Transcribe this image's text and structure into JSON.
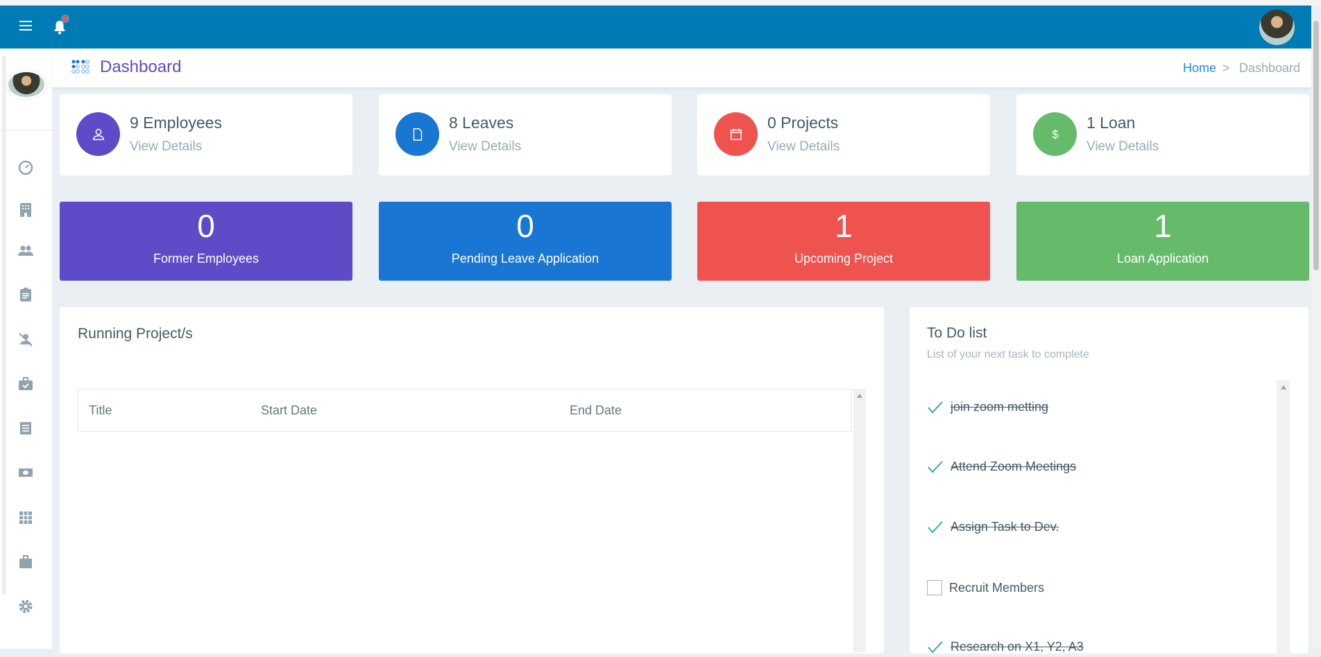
{
  "topbar": {
    "color": "#007bb6",
    "menu_icon": "hamburger-icon",
    "notification_icon": "bell-icon",
    "has_notification": true
  },
  "header": {
    "title": "Dashboard",
    "breadcrumb": {
      "home": "Home",
      "current": "Dashboard"
    }
  },
  "sidebar": {
    "items": [
      "dashboard-icon",
      "building-icon",
      "people-icon",
      "clipboard-icon",
      "person-off-icon",
      "briefcase-check-icon",
      "list-icon",
      "money-icon",
      "grid-icon",
      "briefcase-icon",
      "gear-icon"
    ]
  },
  "stats": [
    {
      "title": "9 Employees",
      "link": "View Details",
      "color": "#5f4bc8",
      "icon": "user-icon"
    },
    {
      "title": "8 Leaves",
      "link": "View Details",
      "color": "#1976d2",
      "icon": "file-icon"
    },
    {
      "title": "0 Projects",
      "link": "View Details",
      "color": "#ef5350",
      "icon": "calendar-icon"
    },
    {
      "title": "1 Loan",
      "link": "View Details",
      "color": "#66bb6a",
      "icon": "dollar-icon"
    }
  ],
  "counters": [
    {
      "value": "0",
      "label": "Former Employees",
      "color": "#5f4bc8"
    },
    {
      "value": "0",
      "label": "Pending Leave Application",
      "color": "#1976d2"
    },
    {
      "value": "1",
      "label": "Upcoming Project",
      "color": "#ef5350"
    },
    {
      "value": "1",
      "label": "Loan Application",
      "color": "#66bb6a"
    }
  ],
  "projects": {
    "title": "Running Project/s",
    "columns": [
      "Title",
      "Start Date",
      "End Date"
    ],
    "rows": []
  },
  "todo": {
    "title": "To Do list",
    "subtitle": "List of your next task to complete",
    "items": [
      {
        "text": "join zoom metting",
        "done": true
      },
      {
        "text": "Attend Zoom Meetings",
        "done": true
      },
      {
        "text": "Assign Task to Dev.",
        "done": true
      },
      {
        "text": "Recruit Members",
        "done": false
      },
      {
        "text": "Research on X1, Y2, A3",
        "done": true
      }
    ]
  }
}
